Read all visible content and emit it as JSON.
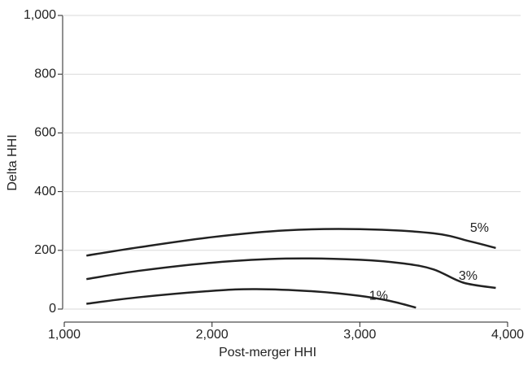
{
  "chart_data": {
    "type": "line",
    "x_label": "Post-merger HHI",
    "y_label": "Delta HHI",
    "xlim": [
      1000,
      4000
    ],
    "xticks": [
      {
        "value": 1000,
        "label": "1,000"
      },
      {
        "value": 2000,
        "label": "2,000"
      },
      {
        "value": 3000,
        "label": "3,000"
      },
      {
        "value": 4000,
        "label": "4,000"
      }
    ],
    "ylim": [
      0,
      1000
    ],
    "yticks": [
      0,
      200,
      400,
      600,
      800,
      {
        "value": 1000,
        "label": "1,000"
      }
    ],
    "grid": true,
    "series": [
      {
        "name": "5%",
        "color": "#222222",
        "x": [
          1150,
          1500,
          2000,
          2500,
          3000,
          3500,
          3750,
          3920
        ],
        "values": [
          182,
          210,
          245,
          268,
          272,
          258,
          230,
          208
        ]
      },
      {
        "name": "3%",
        "color": "#222222",
        "x": [
          1150,
          1500,
          2000,
          2500,
          3000,
          3300,
          3500,
          3700,
          3920
        ],
        "values": [
          102,
          130,
          158,
          172,
          168,
          155,
          135,
          90,
          72
        ]
      },
      {
        "name": "1%",
        "color": "#222222",
        "x": [
          1150,
          1500,
          2000,
          2300,
          2700,
          3000,
          3200,
          3380
        ],
        "values": [
          18,
          40,
          62,
          68,
          60,
          45,
          28,
          5
        ]
      }
    ]
  }
}
